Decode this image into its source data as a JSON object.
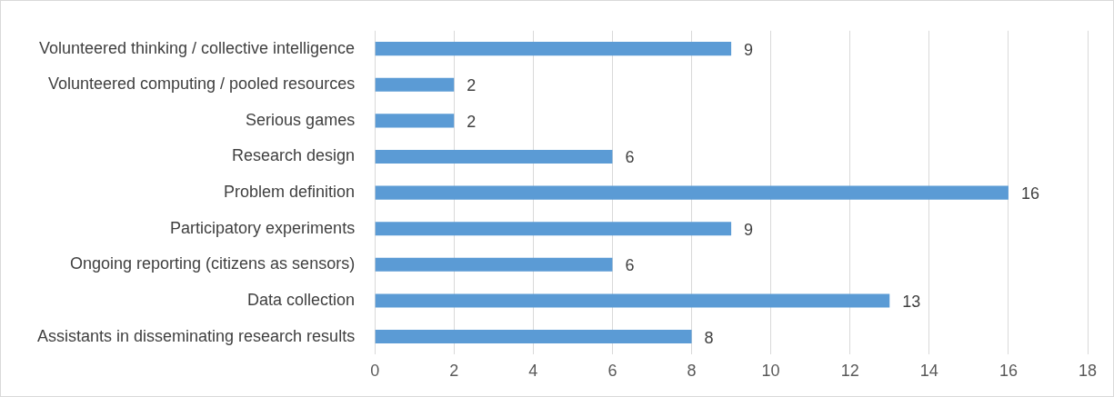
{
  "chart_data": {
    "type": "bar",
    "orientation": "horizontal",
    "categories": [
      "Volunteered thinking / collective intelligence",
      "Volunteered computing / pooled resources",
      "Serious games",
      "Research design",
      "Problem definition",
      "Participatory experiments",
      "Ongoing reporting (citizens as sensors)",
      "Data collection",
      "Assistants in disseminating research results"
    ],
    "values": [
      9,
      2,
      2,
      6,
      16,
      9,
      6,
      13,
      8
    ],
    "color": "#5b9bd5",
    "xlim": [
      0,
      18
    ],
    "xticks": [
      0,
      2,
      4,
      6,
      8,
      10,
      12,
      14,
      16,
      18
    ],
    "grid": "x",
    "data_labels": true,
    "legend": false
  }
}
